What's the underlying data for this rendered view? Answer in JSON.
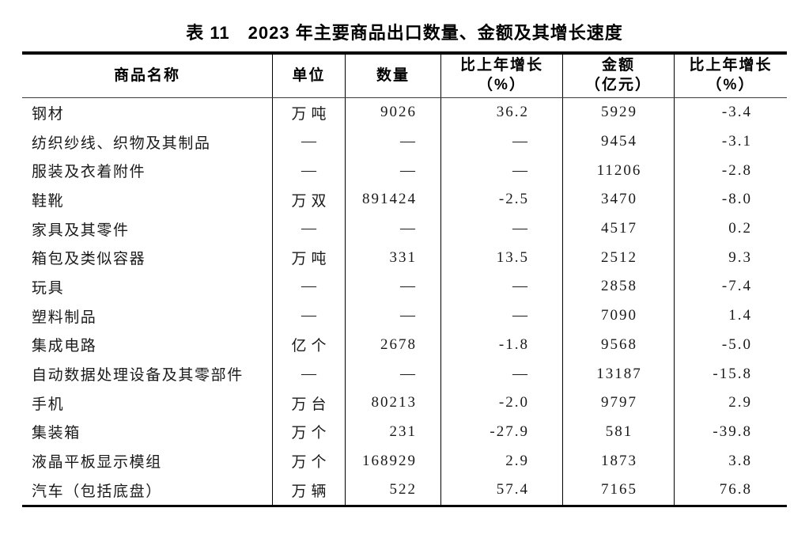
{
  "title": "表 11　2023 年主要商品出口数量、金额及其增长速度",
  "colors": {
    "text": "#1a1a1a",
    "border": "#000000",
    "background": "#ffffff"
  },
  "table": {
    "empty_marker": "—",
    "headers": {
      "name": "商品名称",
      "unit": "单位",
      "quantity": "数量",
      "quantity_growth_line1": "比上年增长",
      "quantity_growth_line2": "（%）",
      "amount_line1": "金额",
      "amount_line2": "（亿元）",
      "amount_growth_line1": "比上年增长",
      "amount_growth_line2": "（%）"
    },
    "rows": [
      {
        "name": "钢材",
        "unit": "万吨",
        "quantity": "9026",
        "quantity_growth": "36.2",
        "amount": "5929",
        "amount_growth": "-3.4"
      },
      {
        "name": "纺织纱线、织物及其制品",
        "unit": "—",
        "quantity": "—",
        "quantity_growth": "—",
        "amount": "9454",
        "amount_growth": "-3.1"
      },
      {
        "name": "服装及衣着附件",
        "unit": "—",
        "quantity": "—",
        "quantity_growth": "—",
        "amount": "11206",
        "amount_growth": "-2.8"
      },
      {
        "name": "鞋靴",
        "unit": "万双",
        "quantity": "891424",
        "quantity_growth": "-2.5",
        "amount": "3470",
        "amount_growth": "-8.0"
      },
      {
        "name": "家具及其零件",
        "unit": "—",
        "quantity": "—",
        "quantity_growth": "—",
        "amount": "4517",
        "amount_growth": "0.2"
      },
      {
        "name": "箱包及类似容器",
        "unit": "万吨",
        "quantity": "331",
        "quantity_growth": "13.5",
        "amount": "2512",
        "amount_growth": "9.3"
      },
      {
        "name": "玩具",
        "unit": "—",
        "quantity": "—",
        "quantity_growth": "—",
        "amount": "2858",
        "amount_growth": "-7.4"
      },
      {
        "name": "塑料制品",
        "unit": "—",
        "quantity": "—",
        "quantity_growth": "—",
        "amount": "7090",
        "amount_growth": "1.4"
      },
      {
        "name": "集成电路",
        "unit": "亿个",
        "quantity": "2678",
        "quantity_growth": "-1.8",
        "amount": "9568",
        "amount_growth": "-5.0"
      },
      {
        "name": "自动数据处理设备及其零部件",
        "unit": "—",
        "quantity": "—",
        "quantity_growth": "—",
        "amount": "13187",
        "amount_growth": "-15.8"
      },
      {
        "name": "手机",
        "unit": "万台",
        "quantity": "80213",
        "quantity_growth": "-2.0",
        "amount": "9797",
        "amount_growth": "2.9"
      },
      {
        "name": "集装箱",
        "unit": "万个",
        "quantity": "231",
        "quantity_growth": "-27.9",
        "amount": "581",
        "amount_growth": "-39.8"
      },
      {
        "name": "液晶平板显示模组",
        "unit": "万个",
        "quantity": "168929",
        "quantity_growth": "2.9",
        "amount": "1873",
        "amount_growth": "3.8"
      },
      {
        "name": "汽车（包括底盘）",
        "unit": "万辆",
        "quantity": "522",
        "quantity_growth": "57.4",
        "amount": "7165",
        "amount_growth": "76.8"
      }
    ]
  }
}
